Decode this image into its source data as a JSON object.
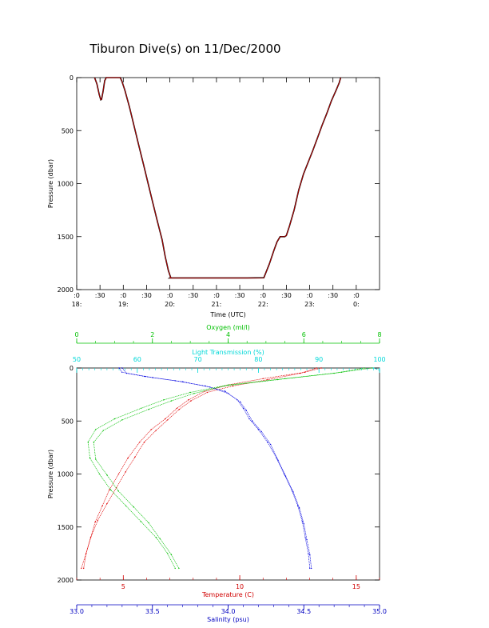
{
  "title": "Tiburon Dive(s) on 11/Dec/2000",
  "chart_data": [
    {
      "type": "line",
      "name": "depth-time",
      "xlabel": "Time (UTC)",
      "ylabel": "Pressure (dbar)",
      "xlim": [
        1800,
        2430
      ],
      "ylim": [
        2000,
        0
      ],
      "yticks": [
        0,
        500,
        1000,
        1500,
        2000
      ],
      "xticks": [
        {
          "t": 1800,
          "top": ":0",
          "bottom": "18:"
        },
        {
          "t": 1830,
          "top": ":30",
          "bottom": ""
        },
        {
          "t": 1900,
          "top": ":0",
          "bottom": "19:"
        },
        {
          "t": 1930,
          "top": ":30",
          "bottom": ""
        },
        {
          "t": 2000,
          "top": ":0",
          "bottom": "20:"
        },
        {
          "t": 2030,
          "top": ":30",
          "bottom": ""
        },
        {
          "t": 2100,
          "top": ":0",
          "bottom": "21:"
        },
        {
          "t": 2130,
          "top": ":30",
          "bottom": ""
        },
        {
          "t": 2200,
          "top": ":0",
          "bottom": "22:"
        },
        {
          "t": 2230,
          "top": ":30",
          "bottom": ""
        },
        {
          "t": 2300,
          "top": ":0",
          "bottom": "23:"
        },
        {
          "t": 2330,
          "top": ":30",
          "bottom": ""
        },
        {
          "t": 2400,
          "top": ":0",
          "bottom": "0:"
        }
      ],
      "line_colors": [
        "#000000",
        "#e00000"
      ],
      "points": [
        [
          1823,
          0
        ],
        [
          1826,
          60
        ],
        [
          1829,
          160
        ],
        [
          1831,
          210
        ],
        [
          1832,
          205
        ],
        [
          1834,
          130
        ],
        [
          1836,
          30
        ],
        [
          1838,
          0
        ],
        [
          1856,
          0
        ],
        [
          1858,
          30
        ],
        [
          1902,
          120
        ],
        [
          1908,
          280
        ],
        [
          1914,
          460
        ],
        [
          1920,
          640
        ],
        [
          1926,
          820
        ],
        [
          1932,
          1000
        ],
        [
          1938,
          1180
        ],
        [
          1944,
          1360
        ],
        [
          1950,
          1530
        ],
        [
          1954,
          1690
        ],
        [
          1958,
          1820
        ],
        [
          1961,
          1885
        ],
        [
          2000,
          1890
        ],
        [
          2040,
          1890
        ],
        [
          2100,
          1890
        ],
        [
          2140,
          1890
        ],
        [
          2201,
          1888
        ],
        [
          2208,
          1760
        ],
        [
          2214,
          1630
        ],
        [
          2218,
          1550
        ],
        [
          2222,
          1500
        ],
        [
          2228,
          1500
        ],
        [
          2230,
          1490
        ],
        [
          2234,
          1400
        ],
        [
          2240,
          1250
        ],
        [
          2246,
          1060
        ],
        [
          2252,
          910
        ],
        [
          2258,
          800
        ],
        [
          2304,
          690
        ],
        [
          2310,
          570
        ],
        [
          2316,
          450
        ],
        [
          2322,
          340
        ],
        [
          2328,
          220
        ],
        [
          2334,
          120
        ],
        [
          2338,
          50
        ],
        [
          2340,
          0
        ]
      ]
    },
    {
      "type": "scatter",
      "name": "profiles",
      "ylabel": "Pressure (dbar)",
      "ylim": [
        2000,
        0
      ],
      "yticks": [
        0,
        500,
        1000,
        1500,
        2000
      ],
      "axes": [
        {
          "key": "oxygen",
          "label": "Oxygen (ml/l)",
          "color": "#00c000",
          "position": "top-outer",
          "range": [
            0,
            8
          ],
          "ticks": [
            0,
            2,
            4,
            6,
            8
          ],
          "ticklabels": [
            "0",
            "2",
            "4",
            "6",
            "8"
          ]
        },
        {
          "key": "light",
          "label": "Light Transmission (%)",
          "color": "#00d8d8",
          "position": "top-inner",
          "range": [
            50,
            100
          ],
          "ticks": [
            50,
            60,
            70,
            80,
            90,
            100
          ],
          "ticklabels": [
            "50",
            "60",
            "70",
            "80",
            "90",
            "100"
          ]
        },
        {
          "key": "temperature",
          "label": "Temperature (C)",
          "color": "#d00000",
          "position": "bottom-inner",
          "range": [
            3,
            16
          ],
          "ticks": [
            5,
            10,
            15
          ],
          "ticklabels": [
            "5",
            "10",
            "15"
          ]
        },
        {
          "key": "salinity",
          "label": "Salinity (psu)",
          "color": "#0000c0",
          "position": "bottom-outer",
          "range": [
            33.0,
            35.0
          ],
          "ticks": [
            33.0,
            33.5,
            34.0,
            34.5,
            35.0
          ],
          "ticklabels": [
            "33.0",
            "33.5",
            "34.0",
            "34.5",
            "35.0"
          ]
        }
      ],
      "series": [
        {
          "axis": "temperature",
          "color": "#e00000",
          "points": [
            [
              13.5,
              0
            ],
            [
              12.8,
              40
            ],
            [
              11.0,
              100
            ],
            [
              9.5,
              160
            ],
            [
              8.5,
              220
            ],
            [
              7.8,
              300
            ],
            [
              7.3,
              380
            ],
            [
              6.8,
              480
            ],
            [
              6.2,
              580
            ],
            [
              5.7,
              700
            ],
            [
              5.2,
              850
            ],
            [
              4.8,
              1000
            ],
            [
              4.4,
              1150
            ],
            [
              4.1,
              1300
            ],
            [
              3.8,
              1450
            ],
            [
              3.6,
              1600
            ],
            [
              3.4,
              1750
            ],
            [
              3.2,
              1890
            ]
          ]
        },
        {
          "axis": "temperature",
          "color": "#e00000",
          "points": [
            [
              13.3,
              0
            ],
            [
              12.6,
              50
            ],
            [
              11.2,
              110
            ],
            [
              9.7,
              170
            ],
            [
              8.6,
              230
            ],
            [
              7.9,
              310
            ],
            [
              7.4,
              390
            ],
            [
              6.9,
              490
            ],
            [
              6.4,
              590
            ],
            [
              5.9,
              700
            ],
            [
              5.5,
              840
            ],
            [
              5.1,
              980
            ],
            [
              4.7,
              1130
            ],
            [
              4.3,
              1280
            ],
            [
              3.9,
              1440
            ],
            [
              3.6,
              1600
            ],
            [
              3.4,
              1750
            ],
            [
              3.3,
              1890
            ]
          ]
        },
        {
          "axis": "salinity",
          "color": "#0000e0",
          "points": [
            [
              33.28,
              0
            ],
            [
              33.3,
              40
            ],
            [
              33.45,
              80
            ],
            [
              33.65,
              120
            ],
            [
              33.85,
              170
            ],
            [
              33.98,
              220
            ],
            [
              34.06,
              300
            ],
            [
              34.1,
              380
            ],
            [
              34.14,
              480
            ],
            [
              34.2,
              580
            ],
            [
              34.26,
              700
            ],
            [
              34.32,
              850
            ],
            [
              34.37,
              1000
            ],
            [
              34.42,
              1150
            ],
            [
              34.46,
              1300
            ],
            [
              34.49,
              1450
            ],
            [
              34.51,
              1600
            ],
            [
              34.53,
              1750
            ],
            [
              34.54,
              1890
            ]
          ]
        },
        {
          "axis": "salinity",
          "color": "#0000e0",
          "points": [
            [
              33.3,
              0
            ],
            [
              33.33,
              50
            ],
            [
              33.5,
              90
            ],
            [
              33.7,
              130
            ],
            [
              33.88,
              180
            ],
            [
              34.0,
              240
            ],
            [
              34.08,
              320
            ],
            [
              34.12,
              400
            ],
            [
              34.16,
              500
            ],
            [
              34.22,
              600
            ],
            [
              34.28,
              720
            ],
            [
              34.33,
              870
            ],
            [
              34.38,
              1020
            ],
            [
              34.43,
              1170
            ],
            [
              34.47,
              1320
            ],
            [
              34.5,
              1470
            ],
            [
              34.52,
              1620
            ],
            [
              34.54,
              1760
            ],
            [
              34.55,
              1890
            ]
          ]
        },
        {
          "axis": "oxygen",
          "color": "#00c000",
          "points": [
            [
              7.8,
              0
            ],
            [
              7.0,
              40
            ],
            [
              5.5,
              100
            ],
            [
              4.0,
              160
            ],
            [
              3.0,
              230
            ],
            [
              2.3,
              300
            ],
            [
              1.7,
              380
            ],
            [
              1.0,
              480
            ],
            [
              0.5,
              580
            ],
            [
              0.3,
              700
            ],
            [
              0.35,
              850
            ],
            [
              0.6,
              1000
            ],
            [
              0.9,
              1150
            ],
            [
              1.3,
              1300
            ],
            [
              1.7,
              1450
            ],
            [
              2.1,
              1600
            ],
            [
              2.4,
              1750
            ],
            [
              2.6,
              1890
            ]
          ]
        },
        {
          "axis": "oxygen",
          "color": "#00c000",
          "points": [
            [
              7.6,
              0
            ],
            [
              6.8,
              50
            ],
            [
              5.3,
              110
            ],
            [
              3.9,
              170
            ],
            [
              3.1,
              240
            ],
            [
              2.5,
              310
            ],
            [
              1.9,
              390
            ],
            [
              1.2,
              490
            ],
            [
              0.7,
              590
            ],
            [
              0.45,
              700
            ],
            [
              0.5,
              860
            ],
            [
              0.8,
              1010
            ],
            [
              1.1,
              1160
            ],
            [
              1.5,
              1310
            ],
            [
              1.9,
              1460
            ],
            [
              2.2,
              1610
            ],
            [
              2.5,
              1760
            ],
            [
              2.7,
              1890
            ]
          ]
        },
        {
          "axis": "light",
          "color": "#00d0d0",
          "points": [
            [
              99.0,
              0
            ],
            [
              99.5,
              10
            ],
            [
              100.0,
              20
            ]
          ]
        }
      ]
    }
  ]
}
